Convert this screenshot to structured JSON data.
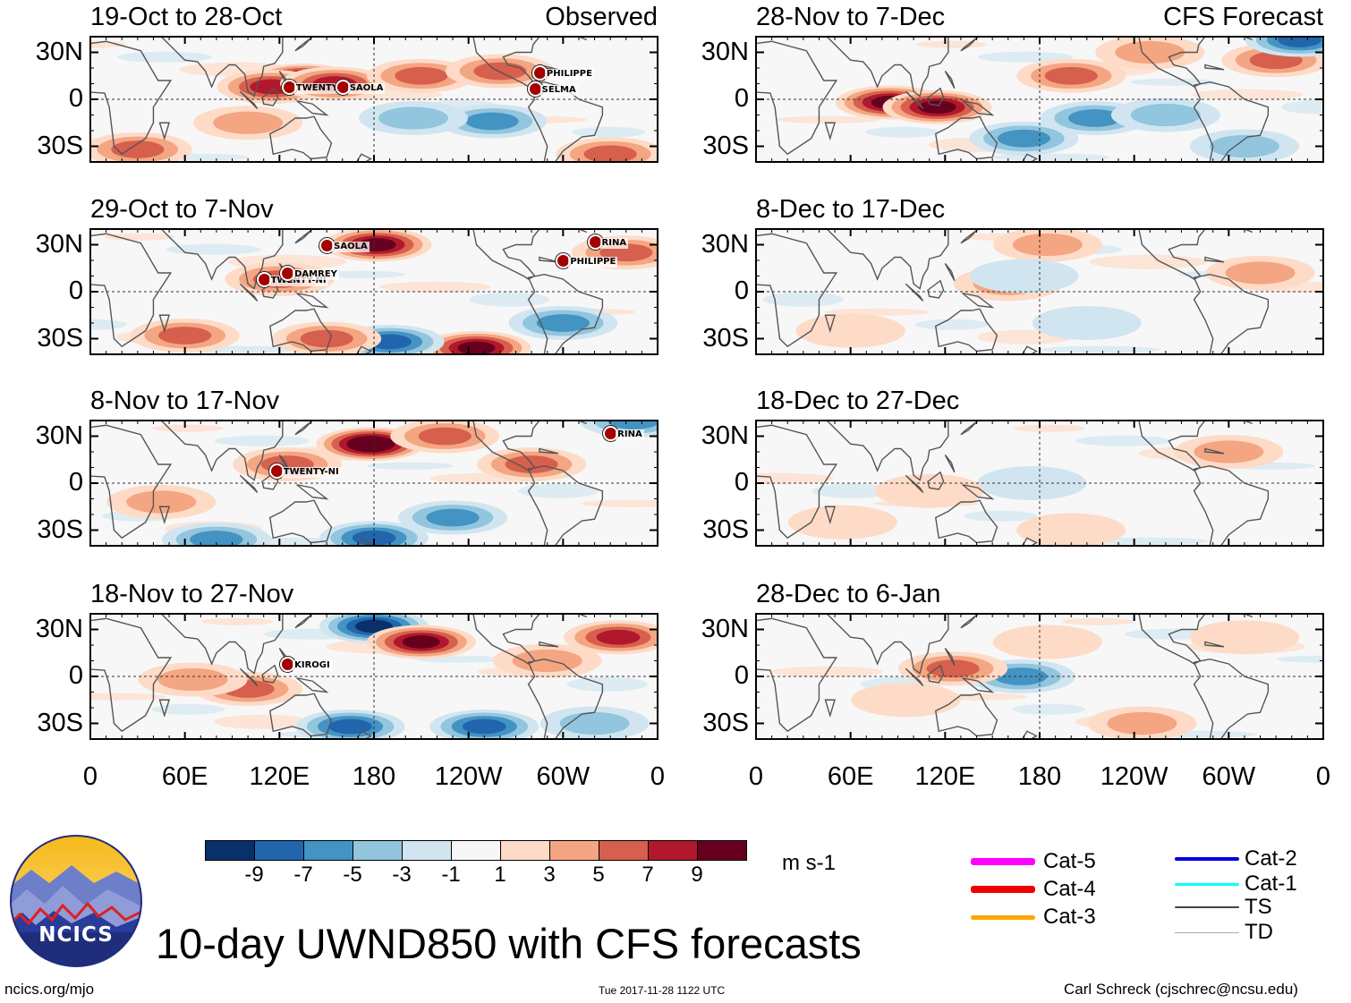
{
  "figure": {
    "main_title": "10-day UWND850 with CFS forecasts",
    "left_header": "Observed",
    "right_header": "CFS Forecast",
    "footer_left": "ncics.org/mjo",
    "footer_center": "Tue 2017-11-28 1122 UTC",
    "footer_right": "Carl Schreck (cjschrec@ncsu.edu)",
    "logo_text": "NCICS",
    "units": "m s-1"
  },
  "chart_data": {
    "type": "heatmap",
    "variable": "850-hPa zonal wind anomaly",
    "x_ticks": [
      "0",
      "60E",
      "120E",
      "180",
      "120W",
      "60W",
      "0"
    ],
    "y_ticks": [
      "30N",
      "0",
      "30S"
    ],
    "xlim": [
      0,
      360
    ],
    "ylim": [
      -40,
      40
    ],
    "colorbar": {
      "ticks": [
        "-9",
        "-7",
        "-5",
        "-3",
        "-1",
        "1",
        "3",
        "5",
        "7",
        "9"
      ],
      "colors": [
        "#08306b",
        "#2166ac",
        "#4393c3",
        "#92c5de",
        "#d1e5f0",
        "#f7f7f7",
        "#fddbc7",
        "#f4a582",
        "#d6604d",
        "#b2182b",
        "#67001f"
      ]
    },
    "panels": [
      {
        "title": "19-Oct to 28-Oct",
        "source": "observed",
        "anomalies": [
          {
            "lon": 135,
            "lat": 12,
            "value": 11
          },
          {
            "lon": 115,
            "lat": 8,
            "value": 8
          },
          {
            "lon": 155,
            "lat": 10,
            "value": 8
          },
          {
            "lon": 210,
            "lat": 15,
            "value": 5
          },
          {
            "lon": 260,
            "lat": 18,
            "value": 5
          },
          {
            "lon": 255,
            "lat": -14,
            "value": -6
          },
          {
            "lon": 205,
            "lat": -12,
            "value": -3
          },
          {
            "lon": 30,
            "lat": -32,
            "value": 6
          },
          {
            "lon": 330,
            "lat": -35,
            "value": 5
          },
          {
            "lon": 100,
            "lat": -15,
            "value": 3
          }
        ],
        "storms": [
          {
            "name": "TWENTY-SI",
            "lon": 126,
            "lat": 8
          },
          {
            "name": "SAOLA",
            "lon": 160,
            "lat": 8
          },
          {
            "name": "PHILIPPE",
            "lon": 285,
            "lat": 17
          },
          {
            "name": "SELMA",
            "lon": 282,
            "lat": 7
          }
        ]
      },
      {
        "title": "29-Oct to 7-Nov",
        "source": "observed",
        "anomalies": [
          {
            "lon": 182,
            "lat": 30,
            "value": 9
          },
          {
            "lon": 245,
            "lat": -36,
            "value": 10
          },
          {
            "lon": 190,
            "lat": -32,
            "value": -7
          },
          {
            "lon": 120,
            "lat": 8,
            "value": 6
          },
          {
            "lon": 340,
            "lat": 25,
            "value": 5
          },
          {
            "lon": 60,
            "lat": -28,
            "value": 5
          },
          {
            "lon": 150,
            "lat": -30,
            "value": 5
          },
          {
            "lon": 300,
            "lat": -20,
            "value": -5
          }
        ],
        "storms": [
          {
            "name": "SAOLA",
            "lon": 150,
            "lat": 30
          },
          {
            "name": "TWENTY-NI",
            "lon": 110,
            "lat": 8
          },
          {
            "name": "DAMREY",
            "lon": 125,
            "lat": 12
          },
          {
            "name": "PHILIPPE",
            "lon": 300,
            "lat": 20
          },
          {
            "name": "RINA",
            "lon": 320,
            "lat": 32
          }
        ]
      },
      {
        "title": "8-Nov to 17-Nov",
        "source": "observed",
        "anomalies": [
          {
            "lon": 178,
            "lat": 25,
            "value": 11
          },
          {
            "lon": 180,
            "lat": -35,
            "value": -7
          },
          {
            "lon": 80,
            "lat": -36,
            "value": -6
          },
          {
            "lon": 125,
            "lat": 12,
            "value": 6
          },
          {
            "lon": 225,
            "lat": 30,
            "value": 5
          },
          {
            "lon": 280,
            "lat": 12,
            "value": 5
          },
          {
            "lon": 345,
            "lat": 40,
            "value": -6
          },
          {
            "lon": 45,
            "lat": -12,
            "value": 4
          },
          {
            "lon": 230,
            "lat": -22,
            "value": -5
          }
        ],
        "storms": [
          {
            "name": "TWENTY-NI",
            "lon": 118,
            "lat": 8
          },
          {
            "name": "RINA",
            "lon": 330,
            "lat": 32
          }
        ]
      },
      {
        "title": "18-Nov to 27-Nov",
        "source": "observed",
        "anomalies": [
          {
            "lon": 180,
            "lat": 32,
            "value": -10
          },
          {
            "lon": 210,
            "lat": 22,
            "value": 9
          },
          {
            "lon": 335,
            "lat": 25,
            "value": 8
          },
          {
            "lon": 250,
            "lat": -32,
            "value": -8
          },
          {
            "lon": 165,
            "lat": -32,
            "value": -7
          },
          {
            "lon": 100,
            "lat": -8,
            "value": 5
          },
          {
            "lon": 65,
            "lat": -2,
            "value": 4
          },
          {
            "lon": 290,
            "lat": 10,
            "value": 4
          },
          {
            "lon": 320,
            "lat": -30,
            "value": -4
          }
        ],
        "storms": [
          {
            "name": "KIROGI",
            "lon": 125,
            "lat": 8
          }
        ]
      },
      {
        "title": "28-Nov to 7-Dec",
        "source": "forecast",
        "anomalies": [
          {
            "lon": 85,
            "lat": -2,
            "value": 10
          },
          {
            "lon": 115,
            "lat": -5,
            "value": 9
          },
          {
            "lon": 215,
            "lat": -12,
            "value": -6
          },
          {
            "lon": 170,
            "lat": -25,
            "value": -6
          },
          {
            "lon": 260,
            "lat": -10,
            "value": -4
          },
          {
            "lon": 200,
            "lat": 15,
            "value": 6
          },
          {
            "lon": 330,
            "lat": 25,
            "value": 6
          },
          {
            "lon": 345,
            "lat": 38,
            "value": -7
          },
          {
            "lon": 310,
            "lat": -30,
            "value": -4
          },
          {
            "lon": 250,
            "lat": 30,
            "value": 4
          }
        ],
        "storms": []
      },
      {
        "title": "8-Dec to 17-Dec",
        "source": "forecast",
        "anomalies": [
          {
            "lon": 160,
            "lat": 5,
            "value": 3
          },
          {
            "lon": 185,
            "lat": 30,
            "value": 3
          },
          {
            "lon": 170,
            "lat": 10,
            "value": -2
          },
          {
            "lon": 320,
            "lat": 12,
            "value": 3
          },
          {
            "lon": 210,
            "lat": -20,
            "value": -2
          },
          {
            "lon": 60,
            "lat": -25,
            "value": 2
          }
        ],
        "storms": []
      },
      {
        "title": "18-Dec to 27-Dec",
        "source": "forecast",
        "anomalies": [
          {
            "lon": 175,
            "lat": 0,
            "value": -2
          },
          {
            "lon": 110,
            "lat": -5,
            "value": 2
          },
          {
            "lon": 300,
            "lat": 20,
            "value": 3
          },
          {
            "lon": 200,
            "lat": -30,
            "value": 2
          },
          {
            "lon": 55,
            "lat": -25,
            "value": 2
          }
        ],
        "storms": []
      },
      {
        "title": "28-Dec to 6-Jan",
        "source": "forecast",
        "anomalies": [
          {
            "lon": 168,
            "lat": 0,
            "value": -6
          },
          {
            "lon": 125,
            "lat": 5,
            "value": 5
          },
          {
            "lon": 245,
            "lat": -30,
            "value": 3
          },
          {
            "lon": 185,
            "lat": 22,
            "value": 2
          },
          {
            "lon": 310,
            "lat": 25,
            "value": 2
          },
          {
            "lon": 95,
            "lat": -15,
            "value": 2
          }
        ],
        "storms": []
      }
    ]
  },
  "legend": {
    "track_categories": [
      {
        "label": "Cat-5",
        "color": "#ff00ff"
      },
      {
        "label": "Cat-4",
        "color": "#ee0000"
      },
      {
        "label": "Cat-3",
        "color": "#ffa500"
      },
      {
        "label": "Cat-2",
        "color": "#0000dd"
      },
      {
        "label": "Cat-1",
        "color": "#00ffff"
      },
      {
        "label": "TS",
        "color": "#444444"
      },
      {
        "label": "TD",
        "color": "#aaaaaa"
      }
    ]
  }
}
